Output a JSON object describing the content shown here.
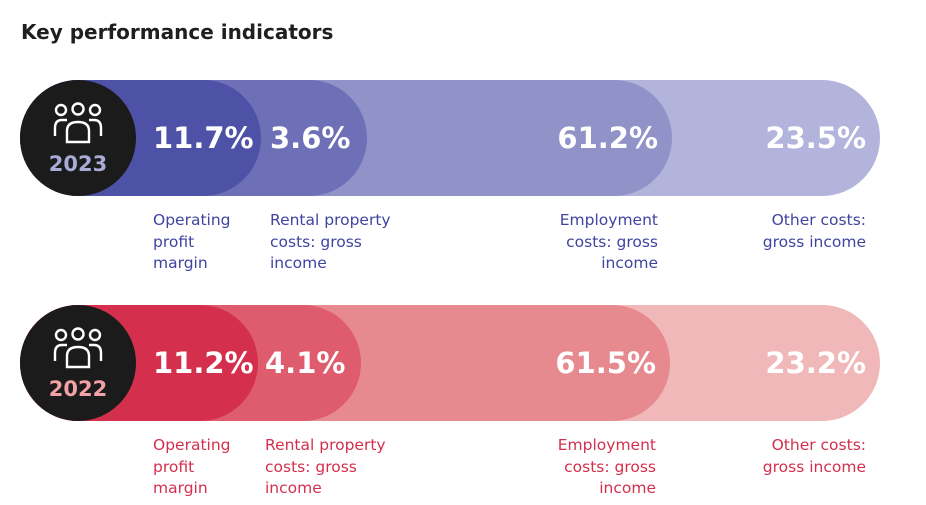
{
  "title": "Key performance indicators",
  "colors": {
    "badge": "#1b1b1b",
    "row2023": [
      "#4d52a6",
      "#6d70b7",
      "#9092c8",
      "#b3b4dc"
    ],
    "row2022": [
      "#d4304d",
      "#df5c6e",
      "#e78a90",
      "#f0b8b9"
    ]
  },
  "rows": [
    {
      "year": "2023",
      "icon": "people-group-icon",
      "indicators": [
        {
          "value": "11.7%",
          "caption": [
            "Operating",
            "profit",
            "margin"
          ]
        },
        {
          "value": "3.6%",
          "caption": [
            "Rental property",
            "costs: gross",
            "income"
          ]
        },
        {
          "value": "61.2%",
          "caption": [
            "Employment",
            "costs: gross",
            "income"
          ]
        },
        {
          "value": "23.5%",
          "caption": [
            "Other costs:",
            "gross income"
          ]
        }
      ]
    },
    {
      "year": "2022",
      "icon": "people-group-icon",
      "indicators": [
        {
          "value": "11.2%",
          "caption": [
            "Operating",
            "profit",
            "margin"
          ]
        },
        {
          "value": "4.1%",
          "caption": [
            "Rental property",
            "costs: gross",
            "income"
          ]
        },
        {
          "value": "61.5%",
          "caption": [
            "Employment",
            "costs: gross",
            "income"
          ]
        },
        {
          "value": "23.2%",
          "caption": [
            "Other costs:",
            "gross income"
          ]
        }
      ]
    }
  ]
}
